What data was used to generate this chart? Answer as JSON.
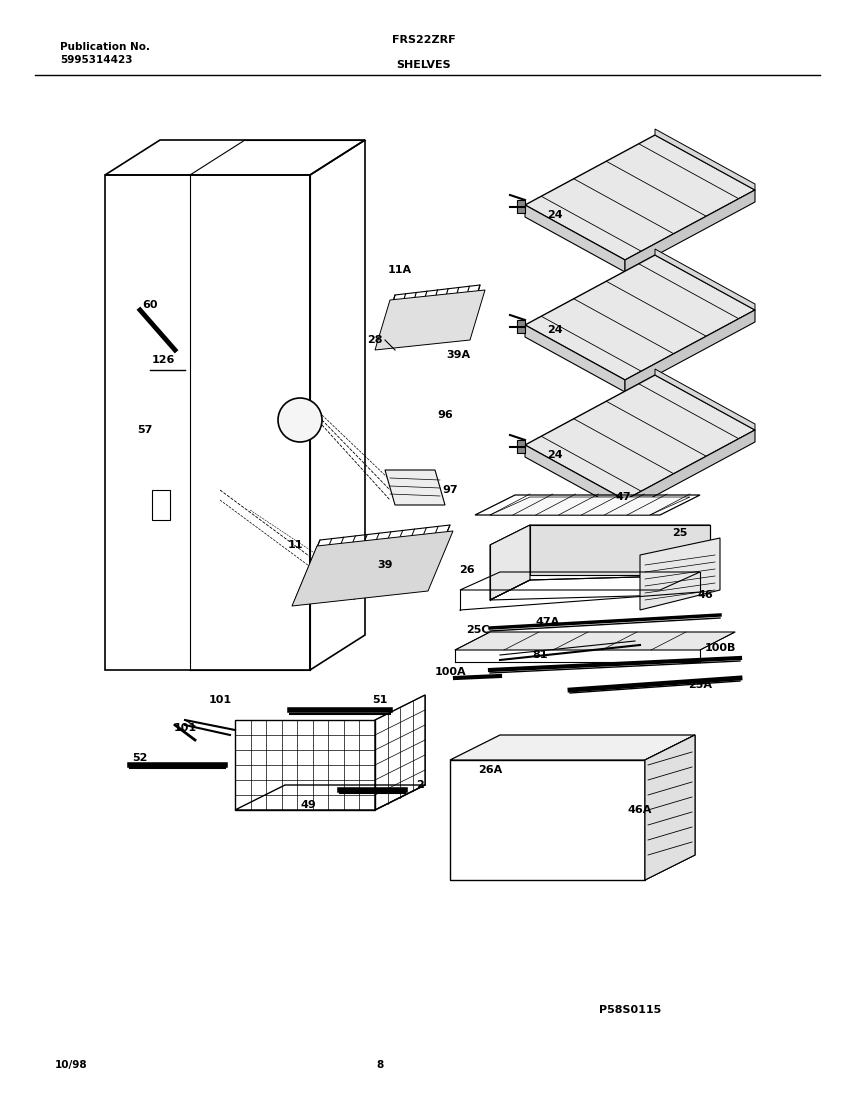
{
  "title_model": "FRS22ZRF",
  "title_section": "SHELVES",
  "pub_label": "Publication No.",
  "pub_number": "5995314423",
  "date_code": "10/98",
  "page_number": "8",
  "diagram_id": "P58S0115",
  "bg_color": "#ffffff",
  "line_color": "#000000"
}
